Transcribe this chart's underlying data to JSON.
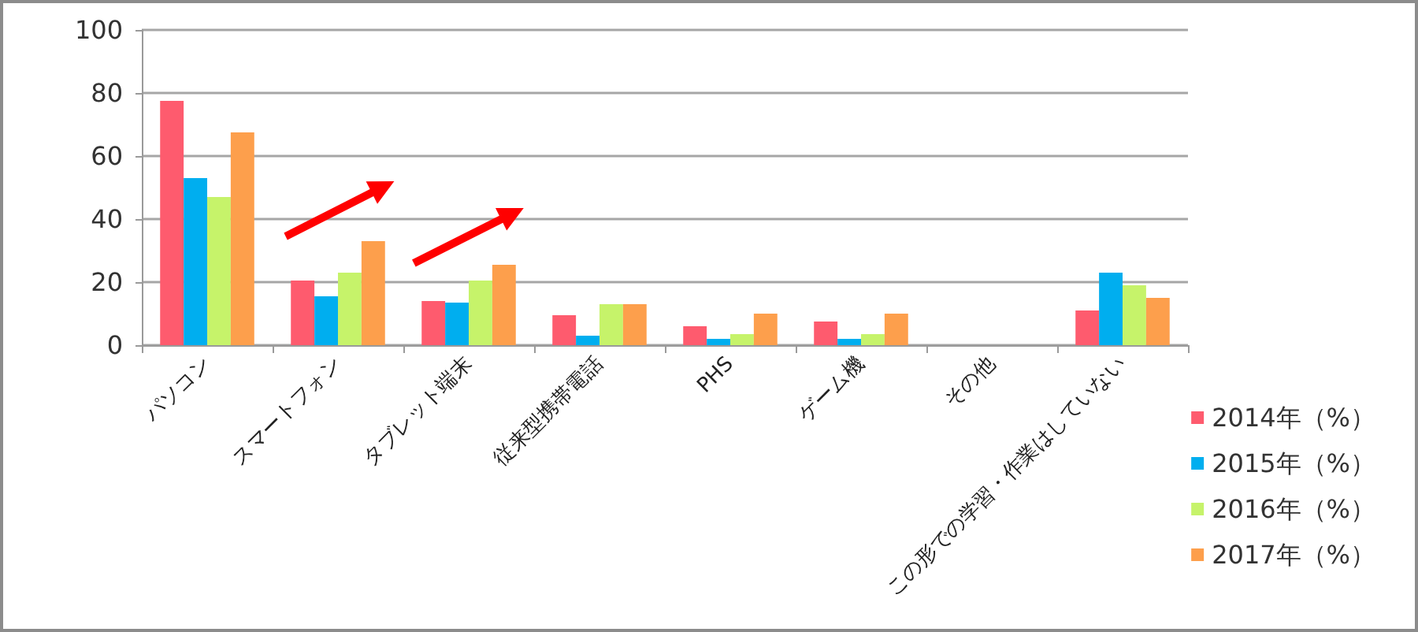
{
  "chart_data": {
    "type": "bar",
    "categories": [
      "パソコン",
      "スマートフォン",
      "タブレット端末",
      "従来型携帯電話",
      "PHS",
      "ゲーム機",
      "その他",
      "この形での学習・作業はしていない"
    ],
    "series": [
      {
        "name": "2014年（%）",
        "color": "#fe5b6e",
        "values": [
          77.5,
          20.5,
          14,
          9.5,
          6,
          7.5,
          null,
          11
        ]
      },
      {
        "name": "2015年（%）",
        "color": "#00aeef",
        "values": [
          53,
          15.5,
          13.5,
          3,
          2,
          2,
          null,
          23
        ]
      },
      {
        "name": "2016年（%）",
        "color": "#c6f36a",
        "values": [
          47,
          23,
          20.5,
          13,
          3.5,
          3.5,
          null,
          19
        ]
      },
      {
        "name": "2017年（%）",
        "color": "#fd9f4c",
        "values": [
          67.5,
          33,
          25.5,
          13,
          10,
          10,
          null,
          15
        ]
      }
    ],
    "ylim": [
      0,
      100
    ],
    "yticks": [
      0,
      20,
      40,
      60,
      80,
      100
    ],
    "grid": "y",
    "legend": "bottom right"
  }
}
